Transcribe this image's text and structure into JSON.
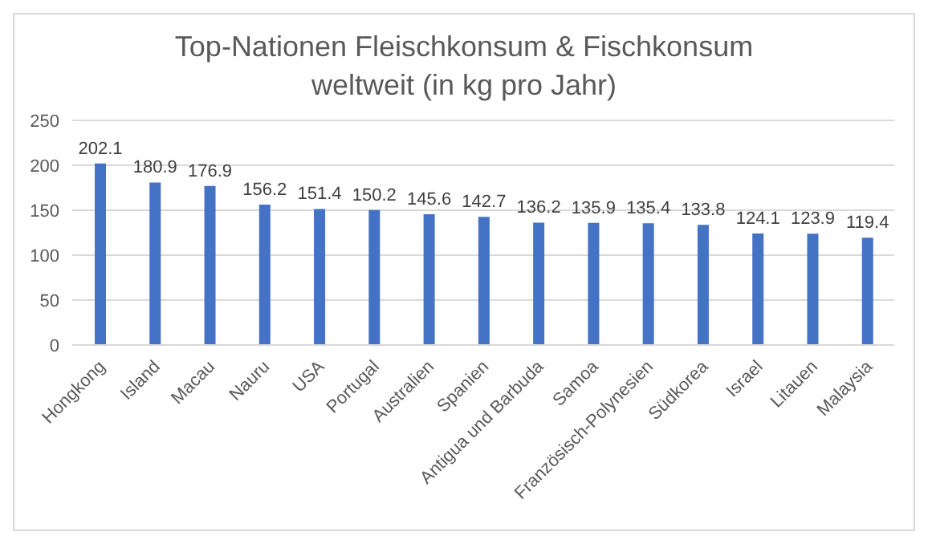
{
  "chart_data": {
    "type": "bar",
    "title": "Top-Nationen Fleischkonsum & Fischkonsum weltweit (in kg pro Jahr)",
    "categories": [
      "Hongkong",
      "Island",
      "Macau",
      "Nauru",
      "USA",
      "Portugal",
      "Australien",
      "Spanien",
      "Antigua und Barbuda",
      "Samoa",
      "Französisch-Polynesien",
      "Südkorea",
      "Israel",
      "Litauen",
      "Malaysia"
    ],
    "values": [
      202.1,
      180.9,
      176.9,
      156.2,
      151.4,
      150.2,
      145.6,
      142.7,
      136.2,
      135.9,
      135.4,
      133.8,
      124.1,
      123.9,
      119.4
    ],
    "color": "#4472c4",
    "ylim": [
      0,
      250
    ],
    "yticks": [
      0,
      50,
      100,
      150,
      200,
      250
    ],
    "grid": "y",
    "data_labels": true
  }
}
